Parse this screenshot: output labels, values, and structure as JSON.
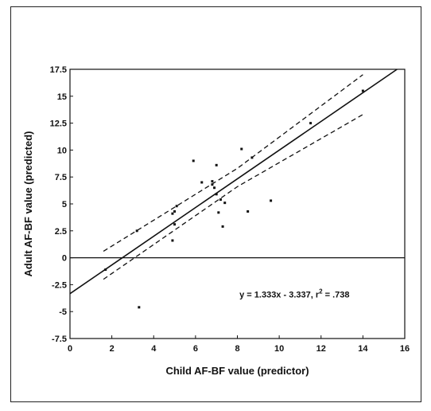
{
  "chart_data": {
    "type": "scatter",
    "title": "",
    "xlabel": "Child AF-BF value (predictor)",
    "ylabel": "Adult AF-BF value (predicted)",
    "xlim": [
      0,
      16
    ],
    "ylim": [
      -7.5,
      17.5
    ],
    "xticks": [
      0,
      2,
      4,
      6,
      8,
      10,
      12,
      14,
      16
    ],
    "yticks": [
      -7.5,
      -5,
      -2.5,
      0,
      2.5,
      5,
      7.5,
      10,
      12.5,
      15,
      17.5
    ],
    "ytick_labels": [
      "-7.5",
      "-5",
      "-2.5",
      "0",
      "2.5",
      "5",
      "7.5",
      "10",
      "12.5",
      "15",
      "17.5"
    ],
    "grid": false,
    "points": [
      {
        "x": 1.7,
        "y": -1.1
      },
      {
        "x": 3.2,
        "y": 2.5
      },
      {
        "x": 3.3,
        "y": -4.6
      },
      {
        "x": 4.9,
        "y": 1.6
      },
      {
        "x": 4.9,
        "y": 4.1
      },
      {
        "x": 5.0,
        "y": 3.1
      },
      {
        "x": 5.0,
        "y": 4.3
      },
      {
        "x": 5.1,
        "y": 4.8
      },
      {
        "x": 5.9,
        "y": 9.0
      },
      {
        "x": 6.3,
        "y": 7.0
      },
      {
        "x": 6.8,
        "y": 6.8
      },
      {
        "x": 6.8,
        "y": 7.1
      },
      {
        "x": 6.9,
        "y": 6.5
      },
      {
        "x": 7.0,
        "y": 8.6
      },
      {
        "x": 7.0,
        "y": 5.9
      },
      {
        "x": 7.1,
        "y": 4.2
      },
      {
        "x": 7.2,
        "y": 5.4
      },
      {
        "x": 7.3,
        "y": 2.9
      },
      {
        "x": 7.4,
        "y": 5.1
      },
      {
        "x": 8.2,
        "y": 10.1
      },
      {
        "x": 8.5,
        "y": 4.3
      },
      {
        "x": 8.7,
        "y": 9.3
      },
      {
        "x": 9.6,
        "y": 5.3
      },
      {
        "x": 11.5,
        "y": 12.5
      },
      {
        "x": 14.0,
        "y": 15.5
      }
    ],
    "regression": {
      "slope": 1.333,
      "intercept": -3.337,
      "r2": 0.738
    },
    "confidence_band": {
      "upper": [
        {
          "x": 1.6,
          "y": 0.6
        },
        {
          "x": 8.0,
          "y": 8.3
        },
        {
          "x": 14.0,
          "y": 17.0
        }
      ],
      "lower": [
        {
          "x": 1.6,
          "y": -2.0
        },
        {
          "x": 8.0,
          "y": 6.6
        },
        {
          "x": 14.0,
          "y": 13.3
        }
      ]
    },
    "annotation": {
      "text": "y = 1.333x - 3.337, r",
      "superscript": "2",
      "suffix": " = .738",
      "at": {
        "x": 8.1,
        "y": -3.7
      }
    }
  }
}
